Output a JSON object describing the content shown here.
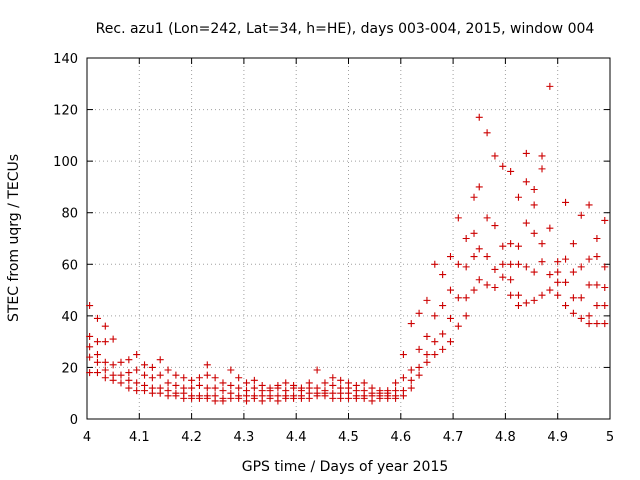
{
  "chart_data": {
    "type": "scatter",
    "title": "Rec. azu1 (Lon=242, Lat=34, h=HE), days 003-004, 2015, window 004",
    "xlabel": "GPS time / Days of year 2015",
    "ylabel": "STEC from uqrg / TECUs",
    "xlim": [
      4,
      5
    ],
    "ylim": [
      0,
      140
    ],
    "x_ticks": [
      "4",
      "4.1",
      "4.2",
      "4.3",
      "4.4",
      "4.5",
      "4.6",
      "4.7",
      "4.8",
      "4.9",
      "5"
    ],
    "y_ticks": [
      "0",
      "20",
      "40",
      "60",
      "80",
      "100",
      "120",
      "140"
    ],
    "grid": true,
    "legend": "none",
    "marker": "plus",
    "color": "#cc0000",
    "series": [
      {
        "points": [
          [
            4.005,
            44
          ],
          [
            4.005,
            32
          ],
          [
            4.005,
            28
          ],
          [
            4.005,
            24
          ],
          [
            4.005,
            18
          ],
          [
            4.02,
            39
          ],
          [
            4.02,
            30
          ],
          [
            4.02,
            25
          ],
          [
            4.02,
            22
          ],
          [
            4.02,
            18
          ],
          [
            4.035,
            36
          ],
          [
            4.035,
            30
          ],
          [
            4.035,
            22
          ],
          [
            4.035,
            19
          ],
          [
            4.035,
            16
          ],
          [
            4.05,
            31
          ],
          [
            4.05,
            21
          ],
          [
            4.05,
            17
          ],
          [
            4.05,
            15
          ],
          [
            4.065,
            22
          ],
          [
            4.065,
            17
          ],
          [
            4.065,
            14
          ],
          [
            4.08,
            23
          ],
          [
            4.08,
            18
          ],
          [
            4.08,
            15
          ],
          [
            4.08,
            12
          ],
          [
            4.095,
            25
          ],
          [
            4.095,
            19
          ],
          [
            4.095,
            14
          ],
          [
            4.095,
            11
          ],
          [
            4.11,
            21
          ],
          [
            4.11,
            17
          ],
          [
            4.11,
            13
          ],
          [
            4.11,
            11
          ],
          [
            4.125,
            20
          ],
          [
            4.125,
            16
          ],
          [
            4.125,
            12
          ],
          [
            4.125,
            10
          ],
          [
            4.14,
            23
          ],
          [
            4.14,
            17
          ],
          [
            4.14,
            12
          ],
          [
            4.14,
            10
          ],
          [
            4.155,
            19
          ],
          [
            4.155,
            14
          ],
          [
            4.155,
            11
          ],
          [
            4.155,
            9
          ],
          [
            4.17,
            17
          ],
          [
            4.17,
            13
          ],
          [
            4.17,
            10
          ],
          [
            4.17,
            9
          ],
          [
            4.185,
            16
          ],
          [
            4.185,
            12
          ],
          [
            4.185,
            10
          ],
          [
            4.185,
            8
          ],
          [
            4.2,
            15
          ],
          [
            4.2,
            12
          ],
          [
            4.2,
            9
          ],
          [
            4.2,
            8
          ],
          [
            4.215,
            16
          ],
          [
            4.215,
            13
          ],
          [
            4.215,
            9
          ],
          [
            4.215,
            8
          ],
          [
            4.23,
            21
          ],
          [
            4.23,
            17
          ],
          [
            4.23,
            12
          ],
          [
            4.23,
            9
          ],
          [
            4.23,
            8
          ],
          [
            4.245,
            16
          ],
          [
            4.245,
            12
          ],
          [
            4.245,
            9
          ],
          [
            4.245,
            7
          ],
          [
            4.26,
            14
          ],
          [
            4.26,
            11
          ],
          [
            4.26,
            8
          ],
          [
            4.26,
            7
          ],
          [
            4.275,
            19
          ],
          [
            4.275,
            13
          ],
          [
            4.275,
            10
          ],
          [
            4.275,
            8
          ],
          [
            4.29,
            16
          ],
          [
            4.29,
            12
          ],
          [
            4.29,
            9
          ],
          [
            4.29,
            8
          ],
          [
            4.305,
            14
          ],
          [
            4.305,
            11
          ],
          [
            4.305,
            9
          ],
          [
            4.305,
            7
          ],
          [
            4.32,
            15
          ],
          [
            4.32,
            12
          ],
          [
            4.32,
            9
          ],
          [
            4.32,
            8
          ],
          [
            4.335,
            13
          ],
          [
            4.335,
            11
          ],
          [
            4.335,
            9
          ],
          [
            4.335,
            7
          ],
          [
            4.35,
            12
          ],
          [
            4.35,
            11
          ],
          [
            4.35,
            9
          ],
          [
            4.35,
            8
          ],
          [
            4.365,
            13
          ],
          [
            4.365,
            12
          ],
          [
            4.365,
            9
          ],
          [
            4.365,
            7
          ],
          [
            4.38,
            14
          ],
          [
            4.38,
            11
          ],
          [
            4.38,
            9
          ],
          [
            4.38,
            8
          ],
          [
            4.395,
            13
          ],
          [
            4.395,
            12
          ],
          [
            4.395,
            9
          ],
          [
            4.395,
            8
          ],
          [
            4.41,
            12
          ],
          [
            4.41,
            11
          ],
          [
            4.41,
            9
          ],
          [
            4.41,
            8
          ],
          [
            4.425,
            14
          ],
          [
            4.425,
            12
          ],
          [
            4.425,
            10
          ],
          [
            4.425,
            8
          ],
          [
            4.44,
            19
          ],
          [
            4.44,
            12
          ],
          [
            4.44,
            10
          ],
          [
            4.44,
            9
          ],
          [
            4.455,
            14
          ],
          [
            4.455,
            11
          ],
          [
            4.455,
            10
          ],
          [
            4.455,
            9
          ],
          [
            4.47,
            16
          ],
          [
            4.47,
            13
          ],
          [
            4.47,
            10
          ],
          [
            4.47,
            8
          ],
          [
            4.485,
            15
          ],
          [
            4.485,
            12
          ],
          [
            4.485,
            10
          ],
          [
            4.485,
            8
          ],
          [
            4.5,
            14
          ],
          [
            4.5,
            12
          ],
          [
            4.5,
            10
          ],
          [
            4.5,
            8
          ],
          [
            4.515,
            13
          ],
          [
            4.515,
            11
          ],
          [
            4.515,
            9
          ],
          [
            4.515,
            8
          ],
          [
            4.53,
            14
          ],
          [
            4.53,
            11
          ],
          [
            4.53,
            9
          ],
          [
            4.53,
            8
          ],
          [
            4.545,
            12
          ],
          [
            4.545,
            10
          ],
          [
            4.545,
            9
          ],
          [
            4.545,
            7
          ],
          [
            4.56,
            11
          ],
          [
            4.56,
            10
          ],
          [
            4.56,
            9
          ],
          [
            4.56,
            8
          ],
          [
            4.575,
            11
          ],
          [
            4.575,
            10
          ],
          [
            4.575,
            9
          ],
          [
            4.575,
            8
          ],
          [
            4.59,
            14
          ],
          [
            4.59,
            11
          ],
          [
            4.59,
            9
          ],
          [
            4.59,
            8
          ],
          [
            4.605,
            25
          ],
          [
            4.605,
            16
          ],
          [
            4.605,
            11
          ],
          [
            4.605,
            9
          ],
          [
            4.62,
            37
          ],
          [
            4.62,
            19
          ],
          [
            4.62,
            15
          ],
          [
            4.62,
            12
          ],
          [
            4.635,
            41
          ],
          [
            4.635,
            27
          ],
          [
            4.635,
            20
          ],
          [
            4.635,
            17
          ],
          [
            4.65,
            46
          ],
          [
            4.65,
            32
          ],
          [
            4.65,
            25
          ],
          [
            4.65,
            22
          ],
          [
            4.665,
            60
          ],
          [
            4.665,
            40
          ],
          [
            4.665,
            30
          ],
          [
            4.665,
            25
          ],
          [
            4.68,
            56
          ],
          [
            4.68,
            44
          ],
          [
            4.68,
            33
          ],
          [
            4.68,
            27
          ],
          [
            4.695,
            63
          ],
          [
            4.695,
            50
          ],
          [
            4.695,
            39
          ],
          [
            4.695,
            30
          ],
          [
            4.71,
            78
          ],
          [
            4.71,
            60
          ],
          [
            4.71,
            47
          ],
          [
            4.71,
            36
          ],
          [
            4.725,
            70
          ],
          [
            4.725,
            59
          ],
          [
            4.725,
            47
          ],
          [
            4.725,
            40
          ],
          [
            4.74,
            86
          ],
          [
            4.74,
            72
          ],
          [
            4.74,
            63
          ],
          [
            4.74,
            50
          ],
          [
            4.75,
            117
          ],
          [
            4.75,
            90
          ],
          [
            4.75,
            66
          ],
          [
            4.75,
            54
          ],
          [
            4.765,
            111
          ],
          [
            4.765,
            78
          ],
          [
            4.765,
            63
          ],
          [
            4.765,
            52
          ],
          [
            4.78,
            102
          ],
          [
            4.78,
            75
          ],
          [
            4.78,
            58
          ],
          [
            4.78,
            51
          ],
          [
            4.795,
            98
          ],
          [
            4.795,
            67
          ],
          [
            4.795,
            60
          ],
          [
            4.795,
            55
          ],
          [
            4.81,
            96
          ],
          [
            4.81,
            68
          ],
          [
            4.81,
            60
          ],
          [
            4.81,
            54
          ],
          [
            4.81,
            48
          ],
          [
            4.825,
            86
          ],
          [
            4.825,
            67
          ],
          [
            4.825,
            60
          ],
          [
            4.825,
            48
          ],
          [
            4.825,
            44
          ],
          [
            4.84,
            103
          ],
          [
            4.84,
            92
          ],
          [
            4.84,
            76
          ],
          [
            4.84,
            59
          ],
          [
            4.84,
            45
          ],
          [
            4.855,
            89
          ],
          [
            4.855,
            83
          ],
          [
            4.855,
            72
          ],
          [
            4.855,
            57
          ],
          [
            4.855,
            46
          ],
          [
            4.87,
            102
          ],
          [
            4.87,
            97
          ],
          [
            4.87,
            68
          ],
          [
            4.87,
            61
          ],
          [
            4.87,
            48
          ],
          [
            4.885,
            129
          ],
          [
            4.885,
            74
          ],
          [
            4.885,
            56
          ],
          [
            4.885,
            50
          ],
          [
            4.9,
            61
          ],
          [
            4.9,
            57
          ],
          [
            4.9,
            53
          ],
          [
            4.9,
            48
          ],
          [
            4.915,
            84
          ],
          [
            4.915,
            62
          ],
          [
            4.915,
            53
          ],
          [
            4.915,
            44
          ],
          [
            4.93,
            68
          ],
          [
            4.93,
            57
          ],
          [
            4.93,
            47
          ],
          [
            4.93,
            41
          ],
          [
            4.945,
            79
          ],
          [
            4.945,
            59
          ],
          [
            4.945,
            47
          ],
          [
            4.945,
            39
          ],
          [
            4.96,
            83
          ],
          [
            4.96,
            62
          ],
          [
            4.96,
            52
          ],
          [
            4.96,
            40
          ],
          [
            4.96,
            37
          ],
          [
            4.975,
            70
          ],
          [
            4.975,
            63
          ],
          [
            4.975,
            52
          ],
          [
            4.975,
            44
          ],
          [
            4.975,
            37
          ],
          [
            4.99,
            77
          ],
          [
            4.99,
            59
          ],
          [
            4.99,
            51
          ],
          [
            4.99,
            44
          ],
          [
            4.99,
            37
          ]
        ]
      }
    ]
  }
}
